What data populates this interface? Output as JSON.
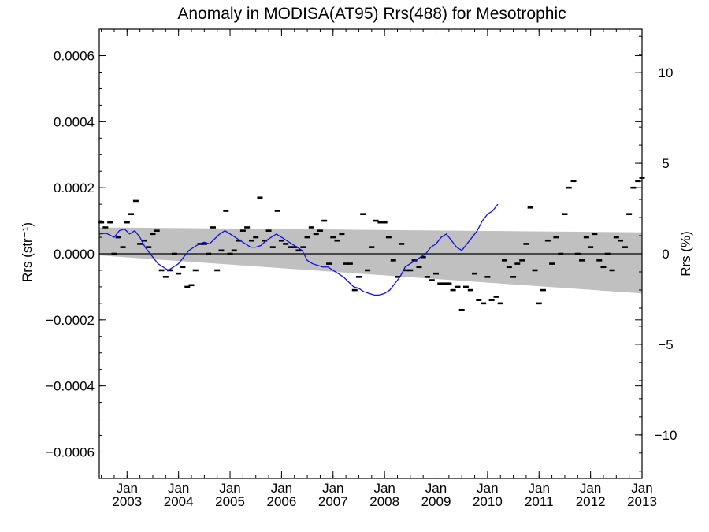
{
  "chart_data": {
    "type": "line",
    "title": "Anomaly in MODISA(AT95) Rrs(488) for Mesotrophic",
    "ylabel_left": "Rrs (str⁻¹)",
    "ylabel_right": "Rrs (%)",
    "xlabel": "",
    "ylim_left": [
      -0.00068,
      0.00068
    ],
    "ylim_right": [
      -12.4,
      12.4
    ],
    "yticks_left": [
      {
        "value": 0.0006,
        "label": "0.0006"
      },
      {
        "value": 0.0004,
        "label": "0.0004"
      },
      {
        "value": 0.0002,
        "label": "0.0002"
      },
      {
        "value": 0.0,
        "label": "0.0000"
      },
      {
        "value": -0.0002,
        "label": "−0.0002"
      },
      {
        "value": -0.0004,
        "label": "−0.0004"
      },
      {
        "value": -0.0006,
        "label": "−0.0006"
      }
    ],
    "yticks_right": [
      {
        "value": 10,
        "label": "10"
      },
      {
        "value": 5,
        "label": "5"
      },
      {
        "value": 0,
        "label": "0"
      },
      {
        "value": -5,
        "label": "−5"
      },
      {
        "value": -10,
        "label": "−10"
      }
    ],
    "xlim": [
      2002.46,
      2013.0
    ],
    "xticks": [
      {
        "value": 2003.0,
        "month": "Jan",
        "year": "2003"
      },
      {
        "value": 2004.0,
        "month": "Jan",
        "year": "2004"
      },
      {
        "value": 2005.0,
        "month": "Jan",
        "year": "2005"
      },
      {
        "value": 2006.0,
        "month": "Jan",
        "year": "2006"
      },
      {
        "value": 2007.0,
        "month": "Jan",
        "year": "2007"
      },
      {
        "value": 2008.0,
        "month": "Jan",
        "year": "2008"
      },
      {
        "value": 2009.0,
        "month": "Jan",
        "year": "2009"
      },
      {
        "value": 2010.0,
        "month": "Jan",
        "year": "2010"
      },
      {
        "value": 2011.0,
        "month": "Jan",
        "year": "2011"
      },
      {
        "value": 2012.0,
        "month": "Jan",
        "year": "2012"
      },
      {
        "value": 2013.0,
        "month": "Jan",
        "year": "2013"
      }
    ],
    "zero_line": 0.0,
    "band": {
      "color": "#c0c0c0",
      "upper": [
        [
          2002.46,
          8e-05
        ],
        [
          2013.0,
          6.5e-05
        ]
      ],
      "lower": [
        [
          2002.46,
          -5e-06
        ],
        [
          2013.0,
          -0.00012
        ]
      ]
    },
    "series": [
      {
        "style": "dash-markers",
        "color": "#000000",
        "points": [
          [
            2002.5,
            9.5e-05
          ],
          [
            2002.58,
            8e-05
          ],
          [
            2002.67,
            9.5e-05
          ],
          [
            2002.75,
            0.0
          ],
          [
            2002.83,
            5e-05
          ],
          [
            2002.92,
            2e-05
          ],
          [
            2003.0,
            9.5e-05
          ],
          [
            2003.08,
            0.00012
          ],
          [
            2003.17,
            0.00016
          ],
          [
            2003.25,
            3e-05
          ],
          [
            2003.33,
            4e-05
          ],
          [
            2003.42,
            2e-05
          ],
          [
            2003.5,
            6e-05
          ],
          [
            2003.58,
            7e-05
          ],
          [
            2003.67,
            -5e-05
          ],
          [
            2003.75,
            -7e-05
          ],
          [
            2003.83,
            -5e-05
          ],
          [
            2003.92,
            0.0
          ],
          [
            2004.0,
            -6e-05
          ],
          [
            2004.08,
            -4e-05
          ],
          [
            2004.17,
            -0.0001
          ],
          [
            2004.25,
            -9.5e-05
          ],
          [
            2004.33,
            -5e-05
          ],
          [
            2004.42,
            3e-05
          ],
          [
            2004.5,
            3e-05
          ],
          [
            2004.58,
            0.0
          ],
          [
            2004.67,
            8e-05
          ],
          [
            2004.75,
            -5e-05
          ],
          [
            2004.83,
            1e-05
          ],
          [
            2004.92,
            0.00013
          ],
          [
            2005.0,
            0.0
          ],
          [
            2005.08,
            1e-05
          ],
          [
            2005.17,
            4e-05
          ],
          [
            2005.25,
            7e-05
          ],
          [
            2005.33,
            8e-05
          ],
          [
            2005.42,
            4e-05
          ],
          [
            2005.5,
            5e-05
          ],
          [
            2005.58,
            0.00017
          ],
          [
            2005.67,
            4e-05
          ],
          [
            2005.75,
            7e-05
          ],
          [
            2005.83,
            2e-05
          ],
          [
            2005.92,
            0.00013
          ],
          [
            2006.0,
            4e-05
          ],
          [
            2006.08,
            3e-05
          ],
          [
            2006.17,
            2e-05
          ],
          [
            2006.25,
            2e-05
          ],
          [
            2006.33,
            1e-05
          ],
          [
            2006.42,
            2e-05
          ],
          [
            2006.5,
            5e-05
          ],
          [
            2006.58,
            8e-05
          ],
          [
            2006.67,
            6e-05
          ],
          [
            2006.75,
            7e-05
          ],
          [
            2006.83,
            0.0001
          ],
          [
            2006.92,
            -3e-05
          ],
          [
            2007.0,
            5e-05
          ],
          [
            2007.08,
            4e-05
          ],
          [
            2007.17,
            6e-05
          ],
          [
            2007.25,
            -3e-05
          ],
          [
            2007.33,
            -3e-05
          ],
          [
            2007.42,
            -0.00011
          ],
          [
            2007.5,
            -7e-05
          ],
          [
            2007.58,
            0.00012
          ],
          [
            2007.67,
            -5e-05
          ],
          [
            2007.75,
            2e-05
          ],
          [
            2007.83,
            0.0001
          ],
          [
            2007.92,
            9.5e-05
          ],
          [
            2008.0,
            9.5e-05
          ],
          [
            2008.08,
            5e-05
          ],
          [
            2008.17,
            -2e-05
          ],
          [
            2008.25,
            -7e-05
          ],
          [
            2008.33,
            3e-05
          ],
          [
            2008.42,
            -5e-05
          ],
          [
            2008.5,
            -5e-05
          ],
          [
            2008.58,
            -2e-05
          ],
          [
            2008.67,
            -4e-05
          ],
          [
            2008.75,
            -1e-05
          ],
          [
            2008.83,
            -7e-05
          ],
          [
            2008.92,
            -8e-05
          ],
          [
            2009.0,
            -6e-05
          ],
          [
            2009.08,
            -9e-05
          ],
          [
            2009.17,
            -9e-05
          ],
          [
            2009.25,
            -9e-05
          ],
          [
            2009.33,
            -0.00011
          ],
          [
            2009.42,
            -0.0001
          ],
          [
            2009.5,
            -0.00017
          ],
          [
            2009.58,
            -0.0001
          ],
          [
            2009.67,
            -0.00011
          ],
          [
            2009.75,
            -6e-05
          ],
          [
            2009.83,
            -0.00014
          ],
          [
            2009.92,
            -0.00015
          ],
          [
            2010.0,
            -7e-05
          ],
          [
            2010.08,
            -0.00014
          ],
          [
            2010.17,
            -0.00013
          ],
          [
            2010.25,
            -0.00015
          ],
          [
            2010.33,
            -2e-05
          ],
          [
            2010.42,
            -4e-05
          ],
          [
            2010.5,
            -7e-05
          ],
          [
            2010.58,
            -3e-05
          ],
          [
            2010.67,
            -2e-05
          ],
          [
            2010.75,
            3e-05
          ],
          [
            2010.83,
            0.00014
          ],
          [
            2010.92,
            -5e-05
          ],
          [
            2011.0,
            -0.00015
          ],
          [
            2011.08,
            -0.00011
          ],
          [
            2011.17,
            4e-05
          ],
          [
            2011.25,
            -3e-05
          ],
          [
            2011.33,
            5e-05
          ],
          [
            2011.42,
            0.0
          ],
          [
            2011.5,
            0.00012
          ],
          [
            2011.58,
            0.0002
          ],
          [
            2011.67,
            0.00022
          ],
          [
            2011.75,
            0.0
          ],
          [
            2011.83,
            -2e-05
          ],
          [
            2011.92,
            5e-05
          ],
          [
            2012.0,
            2e-05
          ],
          [
            2012.08,
            6e-05
          ],
          [
            2012.17,
            -2e-05
          ],
          [
            2012.25,
            -4e-05
          ],
          [
            2012.33,
            0.0
          ],
          [
            2012.42,
            -5e-05
          ],
          [
            2012.5,
            5e-05
          ],
          [
            2012.58,
            4e-05
          ],
          [
            2012.67,
            2e-05
          ],
          [
            2012.75,
            0.00012
          ],
          [
            2012.83,
            0.0002
          ],
          [
            2012.92,
            0.00022
          ],
          [
            2013.0,
            0.00023
          ]
        ]
      },
      {
        "style": "line",
        "color": "#1010e0",
        "points": [
          [
            2002.46,
            6e-05
          ],
          [
            2002.6,
            6.2e-05
          ],
          [
            2002.75,
            5e-05
          ],
          [
            2002.85,
            7e-05
          ],
          [
            2002.95,
            7.5e-05
          ],
          [
            2003.05,
            6e-05
          ],
          [
            2003.15,
            7e-05
          ],
          [
            2003.25,
            5e-05
          ],
          [
            2003.35,
            2e-05
          ],
          [
            2003.5,
            -1e-05
          ],
          [
            2003.6,
            -3e-05
          ],
          [
            2003.7,
            -4e-05
          ],
          [
            2003.8,
            -5e-05
          ],
          [
            2003.9,
            -4e-05
          ],
          [
            2004.0,
            -3e-05
          ],
          [
            2004.1,
            -1e-05
          ],
          [
            2004.2,
            1e-05
          ],
          [
            2004.3,
            2e-05
          ],
          [
            2004.4,
            3e-05
          ],
          [
            2004.5,
            3.5e-05
          ],
          [
            2004.6,
            3e-05
          ],
          [
            2004.7,
            4.5e-05
          ],
          [
            2004.8,
            6e-05
          ],
          [
            2004.9,
            7e-05
          ],
          [
            2005.0,
            6e-05
          ],
          [
            2005.1,
            5e-05
          ],
          [
            2005.2,
            4e-05
          ],
          [
            2005.3,
            3e-05
          ],
          [
            2005.4,
            2e-05
          ],
          [
            2005.5,
            2e-05
          ],
          [
            2005.6,
            2.5e-05
          ],
          [
            2005.7,
            4e-05
          ],
          [
            2005.8,
            5e-05
          ],
          [
            2005.9,
            6e-05
          ],
          [
            2006.0,
            5e-05
          ],
          [
            2006.1,
            4e-05
          ],
          [
            2006.2,
            3e-05
          ],
          [
            2006.3,
            2e-05
          ],
          [
            2006.4,
            1e-05
          ],
          [
            2006.5,
            -2e-05
          ],
          [
            2006.6,
            -3e-05
          ],
          [
            2006.7,
            -3.5e-05
          ],
          [
            2006.8,
            -4e-05
          ],
          [
            2006.9,
            -4e-05
          ],
          [
            2007.0,
            -5e-05
          ],
          [
            2007.1,
            -6e-05
          ],
          [
            2007.2,
            -7e-05
          ],
          [
            2007.3,
            -8.5e-05
          ],
          [
            2007.4,
            -0.0001
          ],
          [
            2007.5,
            -0.000105
          ],
          [
            2007.6,
            -0.000115
          ],
          [
            2007.7,
            -0.00012
          ],
          [
            2007.8,
            -0.000125
          ],
          [
            2007.9,
            -0.000125
          ],
          [
            2008.0,
            -0.00012
          ],
          [
            2008.1,
            -0.00011
          ],
          [
            2008.2,
            -9e-05
          ],
          [
            2008.3,
            -7e-05
          ],
          [
            2008.4,
            -4e-05
          ],
          [
            2008.5,
            -3e-05
          ],
          [
            2008.6,
            -2e-05
          ],
          [
            2008.7,
            -1e-05
          ],
          [
            2008.8,
            0.0
          ],
          [
            2008.9,
            2e-05
          ],
          [
            2009.0,
            3e-05
          ],
          [
            2009.1,
            5e-05
          ],
          [
            2009.2,
            6e-05
          ],
          [
            2009.3,
            4e-05
          ],
          [
            2009.4,
            2e-05
          ],
          [
            2009.5,
            1e-05
          ],
          [
            2009.6,
            3e-05
          ],
          [
            2009.7,
            5e-05
          ],
          [
            2009.8,
            7e-05
          ],
          [
            2009.9,
            0.0001
          ],
          [
            2010.0,
            0.00012
          ],
          [
            2010.1,
            0.00013
          ],
          [
            2010.2,
            0.00015
          ]
        ]
      }
    ]
  }
}
